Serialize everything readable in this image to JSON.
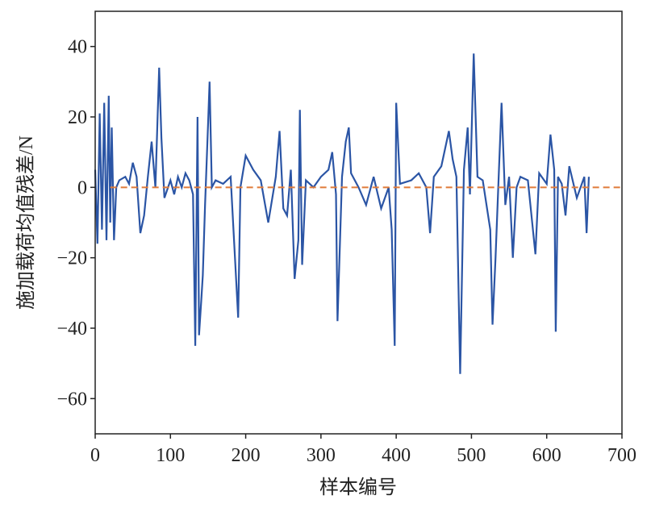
{
  "chart_data": {
    "type": "line",
    "xlabel": "样本编号",
    "ylabel": "施加载荷均值残差/N",
    "x": [
      0,
      3,
      6,
      9,
      12,
      15,
      18,
      20,
      22,
      25,
      28,
      32,
      40,
      45,
      50,
      55,
      60,
      65,
      70,
      75,
      80,
      85,
      88,
      92,
      100,
      105,
      110,
      115,
      120,
      125,
      130,
      133,
      136,
      138,
      141,
      143,
      146,
      150,
      152,
      155,
      160,
      170,
      180,
      190,
      193,
      200,
      210,
      220,
      230,
      240,
      245,
      250,
      255,
      260,
      265,
      270,
      272,
      275,
      280,
      290,
      300,
      310,
      315,
      320,
      322,
      328,
      333,
      337,
      340,
      350,
      360,
      370,
      380,
      390,
      394,
      398,
      400,
      405,
      420,
      430,
      440,
      445,
      450,
      460,
      470,
      475,
      480,
      485,
      490,
      495,
      498,
      503,
      508,
      515,
      520,
      525,
      528,
      532,
      536,
      540,
      545,
      550,
      555,
      560,
      565,
      575,
      585,
      590,
      600,
      605,
      610,
      612,
      615,
      620,
      625,
      630,
      640,
      650,
      653,
      656
    ],
    "series": [
      {
        "color": "#2b55a5",
        "values": [
          5,
          -16,
          21,
          -12,
          24,
          -15,
          26,
          -10,
          17,
          -15,
          0,
          2,
          3,
          1,
          7,
          3,
          -13,
          -8,
          3,
          13,
          0,
          34,
          14,
          -3,
          2,
          -2,
          3,
          0,
          4,
          2,
          -2,
          -45,
          20,
          -42,
          -32,
          -25,
          -5,
          18,
          30,
          0,
          2,
          1,
          3,
          -37,
          0,
          9,
          5,
          2,
          -10,
          3,
          16,
          -6,
          -8,
          5,
          -26,
          -15,
          22,
          -22,
          2,
          0,
          3,
          5,
          10,
          -2,
          -38,
          3,
          13,
          17,
          4,
          0,
          -5,
          3,
          -6,
          0,
          -12,
          -45,
          24,
          1,
          2,
          4,
          0,
          -13,
          3,
          6,
          16,
          8,
          3,
          -53,
          5,
          17,
          -2,
          38,
          3,
          2,
          -5,
          -12,
          -39,
          -20,
          2,
          24,
          -5,
          3,
          -20,
          0,
          3,
          2,
          -19,
          4,
          1,
          15,
          5,
          -41,
          3,
          1,
          -8,
          6,
          -3,
          3,
          -13,
          3
        ]
      },
      {
        "color": "#e07b39",
        "dashed": true,
        "x": [
          20,
          700
        ],
        "values": [
          0,
          0
        ]
      }
    ],
    "xlim": [
      0,
      700
    ],
    "xticks": [
      0,
      100,
      200,
      300,
      400,
      500,
      600,
      700
    ],
    "ylim": [
      -70,
      50
    ],
    "yticks": [
      {
        "value": -60,
        "label": "−60"
      },
      {
        "value": -40,
        "label": "−40"
      },
      {
        "value": -20,
        "label": "−20"
      },
      0,
      20,
      40
    ]
  }
}
